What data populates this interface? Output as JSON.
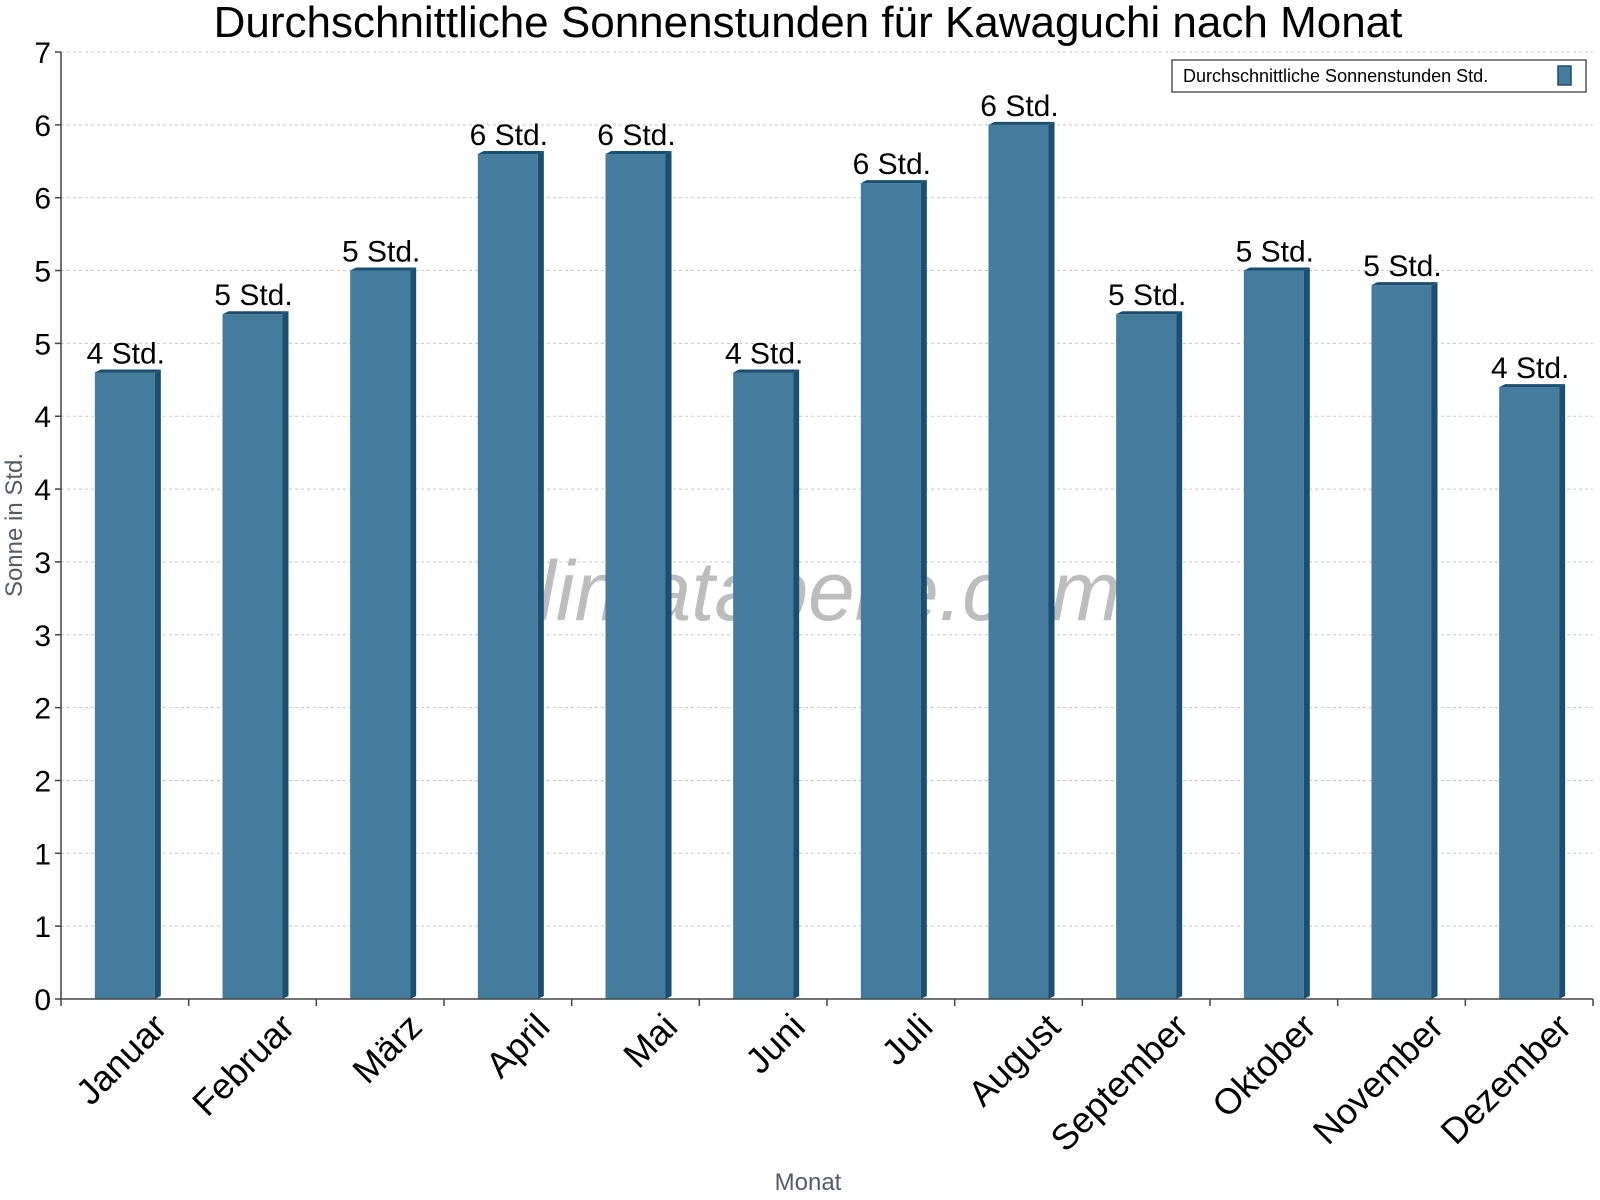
{
  "chart_data": {
    "type": "bar",
    "title": "Durchschnittliche Sonnenstunden für Kawaguchi nach Monat",
    "xlabel": "Monat",
    "ylabel": "Sonne in Std.",
    "ylim": [
      0,
      6.5
    ],
    "y_tick_values": [
      0,
      0.5,
      1,
      1.5,
      2,
      2.5,
      3,
      3.5,
      4,
      4.5,
      5,
      5.5,
      6,
      6.5
    ],
    "y_tick_labels": [
      "0",
      "1",
      "1",
      "2",
      "2",
      "3",
      "3",
      "4",
      "4",
      "5",
      "5",
      "6",
      "6",
      "7"
    ],
    "grid": true,
    "legend_position": "top-right",
    "categories": [
      "Januar",
      "Februar",
      "März",
      "April",
      "Mai",
      "Juni",
      "Juli",
      "August",
      "September",
      "Oktober",
      "November",
      "Dezember"
    ],
    "series": [
      {
        "name": "Durchschnittliche Sonnenstunden Std.",
        "color": "#457b9d",
        "values": [
          4.3,
          4.7,
          5.0,
          5.8,
          5.8,
          4.3,
          5.6,
          6.0,
          4.7,
          5.0,
          4.9,
          4.2
        ],
        "labels": [
          "4 Std.",
          "5 Std.",
          "5 Std.",
          "6 Std.",
          "6 Std.",
          "4 Std.",
          "6 Std.",
          "6 Std.",
          "5 Std.",
          "5 Std.",
          "5 Std.",
          "4 Std."
        ]
      }
    ],
    "watermark": "klimatabelle.com"
  }
}
